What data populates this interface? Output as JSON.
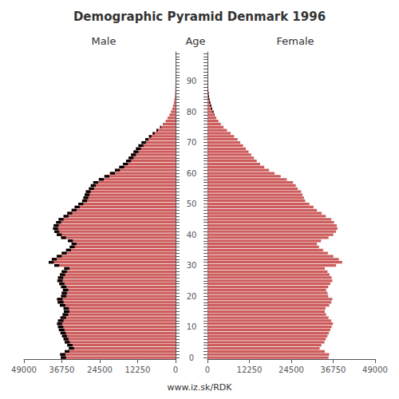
{
  "chart_data": {
    "type": "bar",
    "orientation": "horizontal",
    "title": "Demographic Pyramid Denmark 1996",
    "ylabel": "Age",
    "annotations": [
      "www.iz.sk/RDK"
    ],
    "categories": [
      "0",
      null,
      null,
      null,
      null,
      null,
      null,
      null,
      null,
      null,
      "10",
      null,
      null,
      null,
      null,
      null,
      null,
      null,
      null,
      null,
      "20",
      null,
      null,
      null,
      null,
      null,
      null,
      null,
      null,
      null,
      "30",
      null,
      null,
      null,
      null,
      null,
      null,
      null,
      null,
      null,
      "40",
      null,
      null,
      null,
      null,
      null,
      null,
      null,
      null,
      null,
      "50",
      null,
      null,
      null,
      null,
      null,
      null,
      null,
      null,
      null,
      "60",
      null,
      null,
      null,
      null,
      null,
      null,
      null,
      null,
      null,
      "70",
      null,
      null,
      null,
      null,
      null,
      null,
      null,
      null,
      null,
      "80",
      null,
      null,
      null,
      null,
      null,
      null,
      null,
      null,
      null,
      "90",
      null,
      null,
      null,
      null,
      null,
      null,
      null,
      null,
      null
    ],
    "xlim": [
      0,
      49000
    ],
    "xticks": [
      0,
      12250,
      24500,
      36750,
      49000
    ],
    "grid": false,
    "series": [
      {
        "name": "Male",
        "color": "#CD5C5C",
        "values": [
          37100,
          37300,
          35800,
          34500,
          35000,
          35800,
          36200,
          36700,
          37200,
          37700,
          38000,
          38300,
          38000,
          37200,
          36500,
          36100,
          36200,
          37400,
          38100,
          38300,
          37000,
          36800,
          36400,
          37000,
          37600,
          38200,
          38000,
          37400,
          36800,
          36000,
          39200,
          41000,
          40000,
          38400,
          36800,
          35400,
          34200,
          33600,
          34800,
          37000,
          38400,
          39200,
          39600,
          39400,
          38600,
          37800,
          36200,
          35000,
          33600,
          32600,
          31400,
          30200,
          29800,
          29400,
          29000,
          28000,
          27400,
          26600,
          24800,
          23000,
          21200,
          19600,
          18200,
          17000,
          16000,
          15200,
          14400,
          13600,
          12800,
          12000,
          11000,
          9800,
          8600,
          7400,
          6200,
          5000,
          4000,
          3200,
          2600,
          2000,
          1500,
          1100,
          800,
          550,
          380,
          250,
          160,
          100,
          60,
          35,
          20,
          11,
          6,
          3,
          2,
          1,
          0,
          0,
          0,
          0
        ],
        "excess": {
          "color": "#000000",
          "values": [
            1700,
            1700,
            1500,
            1700,
            1700,
            1600,
            1600,
            1600,
            1700,
            1800,
            1700,
            1600,
            1800,
            1800,
            1800,
            1800,
            1700,
            1800,
            1900,
            1800,
            1700,
            1700,
            1700,
            1700,
            1700,
            1700,
            1700,
            1700,
            1700,
            1700,
            1600,
            1600,
            1600,
            1600,
            1600,
            1600,
            1600,
            1600,
            1600,
            1600,
            1600,
            1600,
            1600,
            1600,
            1600,
            1600,
            1600,
            1600,
            1600,
            1600,
            1600,
            1600,
            1600,
            1600,
            1600,
            1600,
            1600,
            1600,
            1600,
            1600,
            1600,
            1600,
            1600,
            1600,
            1600,
            1600,
            1600,
            1600,
            1600,
            1600,
            1400,
            1000,
            800,
            600,
            500,
            300,
            100,
            0,
            0,
            0,
            0,
            0,
            0,
            0,
            0,
            0,
            0,
            0,
            0,
            0,
            0,
            0,
            0,
            0,
            0,
            0,
            0,
            0,
            0,
            0
          ]
        }
      },
      {
        "name": "Female",
        "color": "#CD5C5C",
        "values": [
          35400,
          35600,
          34300,
          32800,
          33300,
          34200,
          34600,
          35100,
          35500,
          35900,
          36300,
          36700,
          36200,
          35400,
          34700,
          34300,
          34500,
          35600,
          36200,
          36500,
          35300,
          35100,
          34700,
          35300,
          35900,
          36500,
          36300,
          35700,
          35100,
          34300,
          37600,
          39400,
          38400,
          36800,
          35200,
          33800,
          32600,
          32000,
          33200,
          35400,
          36800,
          37600,
          38000,
          37800,
          37000,
          36200,
          34600,
          33400,
          32000,
          31000,
          29800,
          28600,
          28200,
          27800,
          27400,
          26400,
          25800,
          25000,
          23200,
          21400,
          19600,
          18000,
          16600,
          15400,
          14400,
          13600,
          12800,
          12000,
          11200,
          10400,
          9600,
          8800,
          7800,
          6800,
          5700,
          4700,
          3900,
          3200,
          2600,
          2100,
          1750,
          1400,
          1100,
          830,
          620,
          460,
          340,
          240,
          165,
          110,
          72,
          46,
          28,
          17,
          10,
          6,
          3,
          2,
          1,
          0
        ],
        "excess": {
          "color": "#000000",
          "values": [
            0,
            0,
            0,
            0,
            0,
            0,
            0,
            0,
            0,
            0,
            0,
            0,
            0,
            0,
            0,
            0,
            0,
            0,
            0,
            0,
            0,
            0,
            0,
            0,
            0,
            0,
            0,
            0,
            0,
            0,
            0,
            0,
            0,
            0,
            0,
            0,
            0,
            0,
            0,
            0,
            0,
            0,
            0,
            0,
            0,
            0,
            0,
            0,
            0,
            0,
            0,
            0,
            0,
            0,
            0,
            0,
            0,
            0,
            0,
            0,
            0,
            0,
            0,
            0,
            0,
            0,
            0,
            0,
            0,
            0,
            0,
            0,
            0,
            0,
            0,
            0,
            0,
            0,
            0,
            100,
            250,
            300,
            300,
            280,
            240,
            210,
            180,
            140,
            105,
            75,
            52,
            35,
            22,
            14,
            8,
            5,
            3,
            2,
            1,
            0
          ]
        }
      }
    ]
  }
}
